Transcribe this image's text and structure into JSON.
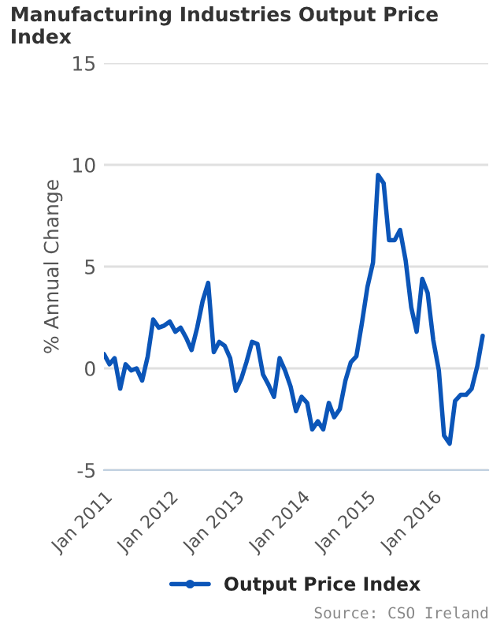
{
  "chart_data": {
    "type": "line",
    "title": "Manufacturing Industries Output Price Index",
    "ylabel": "% Annual Change",
    "x": [
      "2011-01",
      "2011-02",
      "2011-03",
      "2011-04",
      "2011-05",
      "2011-06",
      "2011-07",
      "2011-08",
      "2011-09",
      "2011-10",
      "2011-11",
      "2011-12",
      "2012-01",
      "2012-02",
      "2012-03",
      "2012-04",
      "2012-05",
      "2012-06",
      "2012-07",
      "2012-08",
      "2012-09",
      "2012-10",
      "2012-11",
      "2012-12",
      "2013-01",
      "2013-02",
      "2013-03",
      "2013-04",
      "2013-05",
      "2013-06",
      "2013-07",
      "2013-08",
      "2013-09",
      "2013-10",
      "2013-11",
      "2013-12",
      "2014-01",
      "2014-02",
      "2014-03",
      "2014-04",
      "2014-05",
      "2014-06",
      "2014-07",
      "2014-08",
      "2014-09",
      "2014-10",
      "2014-11",
      "2014-12",
      "2015-01",
      "2015-02",
      "2015-03",
      "2015-04",
      "2015-05",
      "2015-06",
      "2015-07",
      "2015-08",
      "2015-09",
      "2015-10",
      "2015-11",
      "2015-12",
      "2016-01",
      "2016-02",
      "2016-03",
      "2016-04",
      "2016-05",
      "2016-06",
      "2016-07",
      "2016-08",
      "2016-09",
      "2016-10"
    ],
    "series": [
      {
        "name": "Output Price Index",
        "color": "#0b55b8",
        "values": [
          0.7,
          0.2,
          0.5,
          -1.0,
          0.2,
          -0.1,
          0.0,
          -0.6,
          0.6,
          2.4,
          2.0,
          2.1,
          2.3,
          1.8,
          2.0,
          1.5,
          0.9,
          2.0,
          3.3,
          4.2,
          0.8,
          1.3,
          1.1,
          0.5,
          -1.1,
          -0.5,
          0.3,
          1.3,
          1.2,
          -0.3,
          -0.8,
          -1.4,
          0.5,
          -0.1,
          -0.9,
          -2.1,
          -1.4,
          -1.7,
          -3.0,
          -2.6,
          -3.0,
          -1.7,
          -2.4,
          -2.0,
          -0.6,
          0.3,
          0.6,
          2.2,
          4.0,
          5.2,
          9.5,
          9.1,
          6.3,
          6.3,
          6.8,
          5.3,
          3.0,
          1.8,
          4.4,
          3.7,
          1.4,
          -0.1,
          -3.3,
          -3.7,
          -1.6,
          -1.3,
          -1.3,
          -1.0,
          0.1,
          1.6
        ]
      }
    ],
    "xlim": [
      "2011-01",
      "2016-11"
    ],
    "xticks": [
      {
        "value": "2011-01",
        "label": "Jan 2011"
      },
      {
        "value": "2012-01",
        "label": "Jan 2012"
      },
      {
        "value": "2013-01",
        "label": "Jan 2013"
      },
      {
        "value": "2014-01",
        "label": "Jan 2014"
      },
      {
        "value": "2015-01",
        "label": "Jan 2015"
      },
      {
        "value": "2016-01",
        "label": "Jan 2016"
      }
    ],
    "ylim": [
      -5,
      15
    ],
    "yticks": [
      -5,
      0,
      5,
      10,
      15
    ],
    "grid": "y",
    "legend": "bottom",
    "line_style": "solid",
    "annotations": [
      "Source: CSO Ireland"
    ]
  }
}
